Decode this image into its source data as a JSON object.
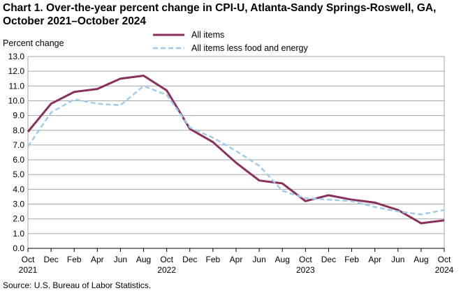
{
  "chart_data": {
    "type": "line",
    "title": "Chart 1. Over-the-year percent change in CPI-U, Atlanta-Sandy Springs-Roswell, GA, October 2021–October 2024",
    "ylabel": "Percent change",
    "xlabel": "",
    "ylim": [
      0,
      13
    ],
    "ytick_step": 1,
    "grid": true,
    "legend_position": "top-center",
    "x": [
      "Oct 2021",
      "Dec 2021",
      "Feb 2022",
      "Apr 2022",
      "Jun 2022",
      "Aug 2022",
      "Oct 2022",
      "Dec 2022",
      "Feb 2023",
      "Apr 2023",
      "Jun 2023",
      "Aug 2023",
      "Oct 2023",
      "Dec 2023",
      "Feb 2024",
      "Apr 2024",
      "Jun 2024",
      "Aug 2024",
      "Oct 2024"
    ],
    "x_tick_labels": [
      {
        "month": "Oct",
        "year": "2021"
      },
      {
        "month": "Dec",
        "year": ""
      },
      {
        "month": "Feb",
        "year": ""
      },
      {
        "month": "Apr",
        "year": ""
      },
      {
        "month": "Jun",
        "year": ""
      },
      {
        "month": "Aug",
        "year": ""
      },
      {
        "month": "Oct",
        "year": "2022"
      },
      {
        "month": "Dec",
        "year": ""
      },
      {
        "month": "Feb",
        "year": ""
      },
      {
        "month": "Apr",
        "year": ""
      },
      {
        "month": "Jun",
        "year": ""
      },
      {
        "month": "Aug",
        "year": ""
      },
      {
        "month": "Oct",
        "year": "2023"
      },
      {
        "month": "Dec",
        "year": ""
      },
      {
        "month": "Feb",
        "year": ""
      },
      {
        "month": "Apr",
        "year": ""
      },
      {
        "month": "Jun",
        "year": ""
      },
      {
        "month": "Aug",
        "year": ""
      },
      {
        "month": "Oct",
        "year": "2024"
      }
    ],
    "series": [
      {
        "name": "All items",
        "color": "#8b2f5c",
        "style": "solid",
        "values": [
          7.9,
          9.8,
          10.6,
          10.8,
          11.5,
          11.7,
          10.7,
          8.1,
          7.2,
          5.8,
          4.6,
          4.4,
          3.2,
          3.6,
          3.3,
          3.1,
          2.6,
          1.7,
          1.9
        ]
      },
      {
        "name": "All items less food and energy",
        "color": "#9ecbee",
        "style": "dashed",
        "values": [
          6.9,
          9.2,
          10.1,
          9.8,
          9.7,
          11.0,
          10.4,
          8.2,
          7.5,
          6.6,
          5.6,
          3.9,
          3.4,
          3.3,
          3.2,
          2.8,
          2.5,
          2.3,
          2.6
        ]
      }
    ]
  },
  "source": "Source: U.S. Bureau of Labor Statistics."
}
